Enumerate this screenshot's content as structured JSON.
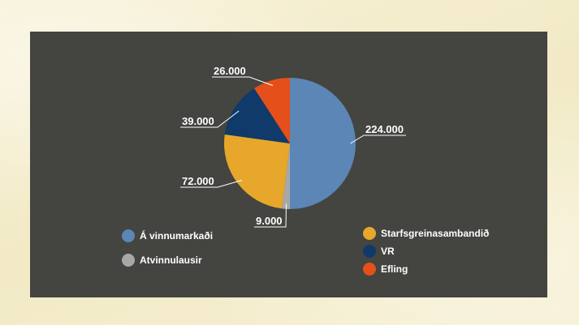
{
  "chart_data": {
    "type": "pie",
    "colors": {
      "a_vinnumarkadi": "#5b86b5",
      "atvinnulausir": "#a9a8a6",
      "starfsgreinasambandid": "#e6a72b",
      "vr": "#0f3a69",
      "efling": "#e5501a"
    },
    "inner_slices": [
      {
        "key": "a_vinnumarkadi",
        "value": 224000,
        "label": "224.000"
      },
      {
        "key": "atvinnulausir",
        "value": 9000,
        "label": "9.000"
      }
    ],
    "outer_slices": [
      {
        "key": "starfsgreinasambandid",
        "value": 72000,
        "label": "72.000"
      },
      {
        "key": "vr",
        "value": 39000,
        "label": "39.000"
      },
      {
        "key": "efling",
        "value": 26000,
        "label": "26.000"
      }
    ],
    "legend_left": [
      {
        "key": "a_vinnumarkadi",
        "label": "Á vinnumarkaði"
      },
      {
        "key": "atvinnulausir",
        "label": "Atvinnulausir"
      }
    ],
    "legend_right": [
      {
        "key": "starfsgreinasambandid",
        "label": "Starfsgreinasambandið"
      },
      {
        "key": "vr",
        "label": "VR"
      },
      {
        "key": "efling",
        "label": "Efling"
      }
    ],
    "legend_placement": "bottom"
  }
}
